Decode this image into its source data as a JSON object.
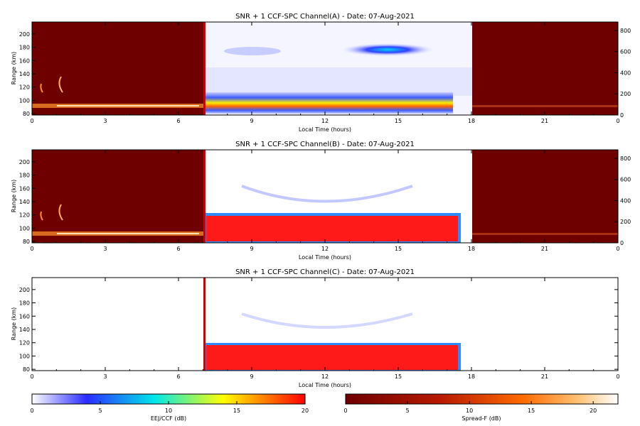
{
  "chart_data": [
    {
      "type": "heatmap",
      "title": "SNR + 1 CCF-SPC Channel(A) - Date: 07-Aug-2021",
      "xlabel": "Local Time (hours)",
      "ylabel": "Range (km)",
      "xlim": [
        0,
        24
      ],
      "ylim": [
        78,
        218
      ],
      "xticks": [
        "0",
        "3",
        "6",
        "9",
        "12",
        "15",
        "18",
        "21",
        "0"
      ],
      "yticks": [
        "80",
        "100",
        "120",
        "140",
        "160",
        "180",
        "200"
      ],
      "y2lim": [
        0,
        880
      ],
      "y2ticks": [
        "0",
        "200",
        "400",
        "600",
        "800"
      ],
      "ccf_window": [
        7,
        18
      ],
      "colormap_outside_window": "Spread-F",
      "colormap_inside_window": "EEJ/CCF",
      "features": [
        {
          "layer": "E",
          "range_km": [
            92,
            112
          ],
          "time_h": [
            7,
            17.5
          ],
          "peak_db": 18
        },
        {
          "layer": "150-km echoes",
          "range_km": [
            165,
            185
          ],
          "time_h": [
            8,
            17.5
          ],
          "peak_db": 6
        }
      ]
    },
    {
      "type": "heatmap",
      "title": "SNR + 1 CCF-SPC Channel(B) - Date: 07-Aug-2021",
      "xlabel": "Local Time (hours)",
      "ylabel": "Range (km)",
      "xlim": [
        0,
        24
      ],
      "ylim": [
        78,
        218
      ],
      "xticks": [
        "0",
        "3",
        "6",
        "9",
        "12",
        "15",
        "18",
        "21",
        "0"
      ],
      "yticks": [
        "80",
        "100",
        "120",
        "140",
        "160",
        "180",
        "200"
      ],
      "y2lim": [
        0,
        880
      ],
      "y2ticks": [
        "0",
        "200",
        "400",
        "600",
        "800"
      ],
      "ccf_window": [
        7,
        18
      ],
      "colormap_outside_window": "Spread-F",
      "colormap_inside_window": "EEJ/CCF",
      "features": [
        {
          "layer": "E",
          "range_km": [
            82,
            124
          ],
          "time_h": [
            7,
            17.8
          ],
          "peak_db": 20
        },
        {
          "layer": "150-km echoes",
          "range_km": [
            138,
            160
          ],
          "time_h": [
            8.5,
            16.5
          ],
          "peak_db": 4
        }
      ]
    },
    {
      "type": "heatmap",
      "title": "SNR + 1 CCF-SPC Channel(C) - Date: 07-Aug-2021",
      "xlabel": "Local Time (hours)",
      "ylabel": "Range (km)",
      "xlim": [
        0,
        24
      ],
      "ylim": [
        78,
        218
      ],
      "xticks": [
        "0",
        "3",
        "6",
        "9",
        "12",
        "15",
        "18",
        "21",
        "0"
      ],
      "yticks": [
        "80",
        "100",
        "120",
        "140",
        "160",
        "180",
        "200"
      ],
      "ccf_window": [
        7,
        18
      ],
      "colormap_inside_window": "EEJ/CCF",
      "features": [
        {
          "layer": "E",
          "range_km": [
            82,
            120
          ],
          "time_h": [
            7,
            17.8
          ],
          "peak_db": 20
        },
        {
          "layer": "150-km echoes",
          "range_km": [
            135,
            160
          ],
          "time_h": [
            8.5,
            16.5
          ],
          "peak_db": 3
        }
      ]
    }
  ],
  "colorbars": [
    {
      "label": "EEJ/CCF (dB)",
      "range": [
        0,
        20
      ],
      "ticks": [
        "0",
        "5",
        "10",
        "15",
        "20"
      ],
      "colors": [
        "#ffffff",
        "#2a2cff",
        "#00e8e8",
        "#ffff00",
        "#ff0000"
      ]
    },
    {
      "label": "Spread-F (dB)",
      "range": [
        0,
        22
      ],
      "ticks": [
        "0",
        "5",
        "10",
        "15",
        "20"
      ],
      "colors": [
        "#6e0000",
        "#b81a00",
        "#ff6a00",
        "#ffc070",
        "#ffffff"
      ]
    }
  ]
}
